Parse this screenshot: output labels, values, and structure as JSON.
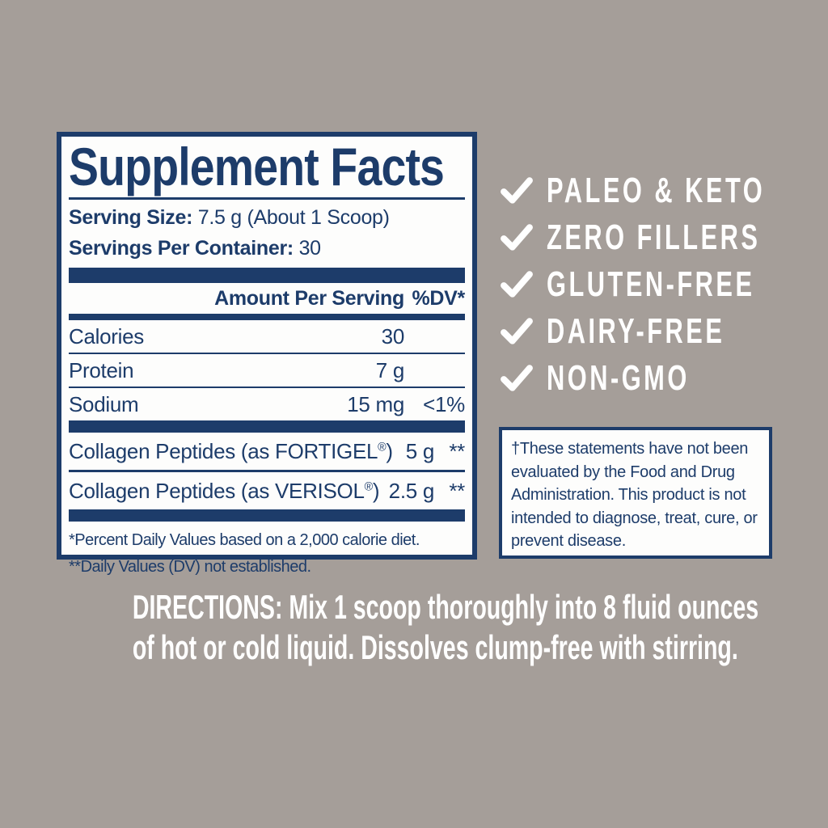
{
  "colors": {
    "background": "#a59e99",
    "navy": "#1d3c6a",
    "white": "#ffffff"
  },
  "supplement_panel": {
    "title": "Supplement Facts",
    "serving_size_label": "Serving Size:",
    "serving_size_value": "7.5 g (About 1 Scoop)",
    "servings_label": "Servings Per Container:",
    "servings_value": "30",
    "header": {
      "amount": "Amount Per Serving",
      "dv": "%DV*"
    },
    "rows": [
      {
        "name": "Calories",
        "amount": "30",
        "dv": ""
      },
      {
        "name": "Protein",
        "amount": "7 g",
        "dv": ""
      },
      {
        "name": "Sodium",
        "amount": "15 mg",
        "dv": "<1%"
      }
    ],
    "collagen_rows": [
      {
        "name": "Collagen Peptides (as FORTIGEL®)",
        "amount": "5 g",
        "dv": "**"
      },
      {
        "name": "Collagen Peptides (as VERISOL®)",
        "amount": "2.5 g",
        "dv": "**"
      }
    ],
    "footnotes": [
      "*Percent Daily Values based on a 2,000 calorie diet.",
      "**Daily Values (DV) not established."
    ]
  },
  "features": {
    "checkmark_icon": "check-icon",
    "items": [
      "PALEO & KETO",
      "ZERO FILLERS",
      "GLUTEN-FREE",
      "DAIRY-FREE",
      "NON-GMO"
    ]
  },
  "disclaimer": "†These statements have not been evaluated by the Food and Drug Administration. This product is not intended to diagnose, treat, cure, or prevent disease.",
  "directions": {
    "line1": "DIRECTIONS: Mix 1 scoop thoroughly into 8 fluid ounces",
    "line2": "of hot or cold liquid. Dissolves clump-free with stirring."
  }
}
